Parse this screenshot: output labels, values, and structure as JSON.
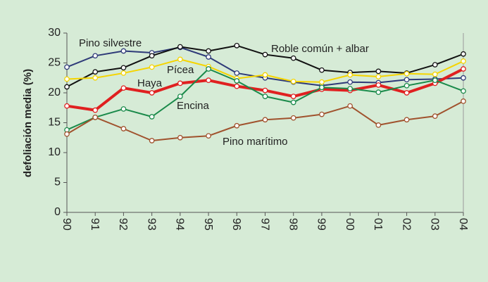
{
  "chart_data": {
    "type": "line",
    "y_label": "defoliación media (%)",
    "categories": [
      "90",
      "91",
      "92",
      "93",
      "94",
      "95",
      "96",
      "97",
      "98",
      "99",
      "00",
      "01",
      "02",
      "03",
      "04"
    ],
    "ylim": [
      0,
      30
    ],
    "yticks": [
      0,
      5,
      10,
      15,
      20,
      25,
      30
    ],
    "grid": false,
    "series": [
      {
        "name": "Pino silvestre",
        "color": "#2e3a78",
        "values": [
          24.3,
          26.2,
          27.0,
          26.7,
          27.6,
          26.0,
          23.3,
          22.5,
          21.8,
          21.2,
          21.8,
          21.7,
          22.2,
          22.3,
          22.5
        ]
      },
      {
        "name": "Roble común + albar",
        "color": "#111111",
        "values": [
          21.0,
          23.5,
          24.2,
          26.2,
          27.7,
          27.0,
          27.9,
          26.4,
          25.8,
          23.8,
          23.4,
          23.6,
          23.3,
          24.7,
          26.5
        ]
      },
      {
        "name": "Pícea",
        "color": "#f5d400",
        "values": [
          22.3,
          22.5,
          23.3,
          24.3,
          25.6,
          24.4,
          22.4,
          23.0,
          21.9,
          21.8,
          23.0,
          22.7,
          23.2,
          23.1,
          25.3
        ]
      },
      {
        "name": "Haya",
        "color": "#e02020",
        "values": [
          17.8,
          17.1,
          20.8,
          20.0,
          21.6,
          22.1,
          21.1,
          20.4,
          19.4,
          20.6,
          20.4,
          21.3,
          20.0,
          21.6,
          24.0
        ]
      },
      {
        "name": "Encina",
        "color": "#1a8a4a",
        "values": [
          13.8,
          15.9,
          17.3,
          16.0,
          19.4,
          24.0,
          22.0,
          19.4,
          18.4,
          20.9,
          20.7,
          20.1,
          21.2,
          22.1,
          20.3
        ]
      },
      {
        "name": "Pino marítimo",
        "color": "#a0522d",
        "values": [
          13.1,
          15.9,
          14.0,
          12.0,
          12.5,
          12.8,
          14.5,
          15.5,
          15.8,
          16.4,
          17.8,
          14.6,
          15.5,
          16.1,
          18.6
        ]
      }
    ]
  }
}
